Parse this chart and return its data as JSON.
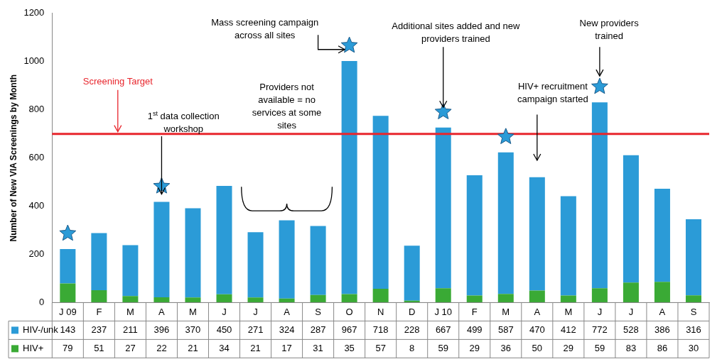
{
  "chart_data": {
    "type": "bar",
    "stacked": true,
    "ylabel": "Number of New VIA Screenings by Month",
    "categories": [
      "J 09",
      "F",
      "M",
      "A",
      "M",
      "J",
      "J",
      "A",
      "S",
      "O",
      "N",
      "D",
      "J 10",
      "F",
      "M",
      "A",
      "M",
      "J",
      "J",
      "A",
      "S"
    ],
    "series": [
      {
        "name": "HIV+",
        "color": "#3aaa35",
        "values": [
          79,
          51,
          27,
          22,
          21,
          34,
          21,
          17,
          31,
          35,
          57,
          8,
          59,
          29,
          36,
          50,
          29,
          59,
          83,
          86,
          30
        ]
      },
      {
        "name": "HIV-/unk",
        "color": "#2b9bd7",
        "values": [
          143,
          237,
          211,
          396,
          370,
          450,
          271,
          324,
          287,
          967,
          718,
          228,
          667,
          499,
          587,
          470,
          412,
          772,
          528,
          386,
          316
        ]
      }
    ],
    "ylim": [
      0,
      1200
    ],
    "yticks": [
      0,
      200,
      400,
      600,
      800,
      1000,
      1200
    ],
    "grid": false,
    "data_labels": true,
    "legend": "bottom left",
    "ref_lines": [
      {
        "axis": "y",
        "value": 700,
        "label": "Screening Target",
        "color": "#e8262d"
      }
    ],
    "annotations": [
      "1$^{st}$ data collection workshop",
      "Providers not available = no services at some sites",
      "Mass screening campaign across all sites",
      "Additional sites added and new providers trained",
      "HIV+ recruitment campaign started",
      "New providers trained"
    ]
  }
}
